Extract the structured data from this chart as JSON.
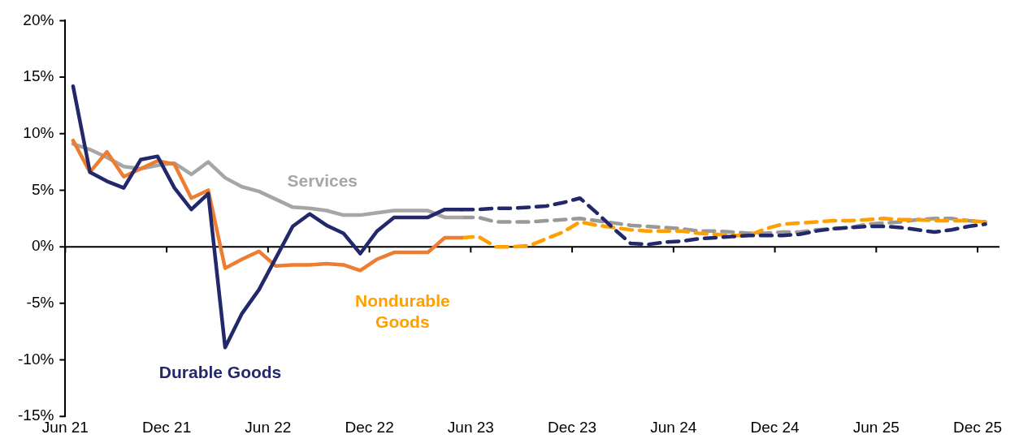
{
  "chart_data": {
    "type": "line",
    "x": [
      "2021-06-15",
      "2021-07-15",
      "2021-08-15",
      "2021-09-15",
      "2021-10-15",
      "2021-11-15",
      "2021-12-15",
      "2022-01-15",
      "2022-02-15",
      "2022-03-15",
      "2022-04-15",
      "2022-05-15",
      "2022-06-15",
      "2022-07-15",
      "2022-08-15",
      "2022-09-15",
      "2022-10-15",
      "2022-11-15",
      "2022-12-15",
      "2023-01-15",
      "2023-02-15",
      "2023-03-15",
      "2023-04-15",
      "2023-05-15",
      "2023-06-15",
      "2023-07-15",
      "2023-08-15",
      "2023-09-15",
      "2023-10-15",
      "2023-11-15",
      "2023-12-15",
      "2024-01-15",
      "2024-02-15",
      "2024-03-15",
      "2024-04-15",
      "2024-05-15",
      "2024-06-15",
      "2024-07-15",
      "2024-08-15",
      "2024-09-15",
      "2024-10-15",
      "2024-11-15",
      "2024-12-15",
      "2025-01-15",
      "2025-02-15",
      "2025-03-15",
      "2025-04-15",
      "2025-05-15",
      "2025-06-15",
      "2025-07-15",
      "2025-08-15",
      "2025-09-15",
      "2025-10-15",
      "2025-11-15",
      "2025-12-15"
    ],
    "series": [
      {
        "name": "Durable Goods",
        "color": "#22286a",
        "line_style": "solid",
        "values": [
          14.2,
          6.6,
          5.8,
          5.2,
          7.7,
          8.0,
          5.2,
          3.3,
          4.7,
          -8.9,
          -5.9,
          -3.8,
          -1.0,
          1.8,
          2.9,
          1.9,
          1.2,
          -0.6,
          1.4,
          2.6,
          2.6,
          2.6,
          3.3,
          3.3,
          null,
          null,
          null,
          null,
          null,
          null,
          null,
          null,
          null,
          null,
          null,
          null,
          null,
          null,
          null,
          null,
          null,
          null,
          null,
          null,
          null,
          null,
          null,
          null,
          null,
          null,
          null,
          null,
          null,
          null,
          null
        ]
      },
      {
        "name": "Nondurable Goods",
        "color": "#ed7d31",
        "line_style": "solid",
        "values": [
          9.4,
          6.6,
          8.4,
          6.2,
          6.9,
          7.6,
          7.3,
          4.3,
          5.0,
          -1.9,
          -1.1,
          -0.4,
          -1.7,
          -1.6,
          -1.6,
          -1.5,
          -1.6,
          -2.1,
          -1.1,
          -0.5,
          -0.5,
          -0.5,
          0.8,
          0.8,
          null,
          null,
          null,
          null,
          null,
          null,
          null,
          null,
          null,
          null,
          null,
          null,
          null,
          null,
          null,
          null,
          null,
          null,
          null,
          null,
          null,
          null,
          null,
          null,
          null,
          null,
          null,
          null,
          null,
          null,
          null
        ]
      },
      {
        "name": "Services",
        "color": "#a6a6a6",
        "line_style": "solid",
        "values": [
          9.1,
          8.6,
          7.9,
          7.1,
          6.9,
          7.2,
          7.4,
          6.4,
          7.5,
          6.1,
          5.3,
          4.9,
          4.2,
          3.5,
          3.4,
          3.2,
          2.8,
          2.8,
          3.0,
          3.2,
          3.2,
          3.2,
          2.6,
          2.6,
          null,
          null,
          null,
          null,
          null,
          null,
          null,
          null,
          null,
          null,
          null,
          null,
          null,
          null,
          null,
          null,
          null,
          null,
          null,
          null,
          null,
          null,
          null,
          null,
          null,
          null,
          null,
          null,
          null,
          null,
          null
        ]
      },
      {
        "color": "#22286a",
        "line_style": "dashed",
        "values": [
          null,
          null,
          null,
          null,
          null,
          null,
          null,
          null,
          null,
          null,
          null,
          null,
          null,
          null,
          null,
          null,
          null,
          null,
          null,
          null,
          null,
          null,
          null,
          3.3,
          3.3,
          3.4,
          3.4,
          3.5,
          3.6,
          3.9,
          4.3,
          3.0,
          1.6,
          0.3,
          0.2,
          0.4,
          0.5,
          0.7,
          0.8,
          0.9,
          1.0,
          1.0,
          1.0,
          1.1,
          1.4,
          1.6,
          1.7,
          1.8,
          1.8,
          1.7,
          1.5,
          1.3,
          1.5,
          1.8,
          2.0
        ]
      },
      {
        "color": "#ffa000",
        "line_style": "dashed",
        "values": [
          null,
          null,
          null,
          null,
          null,
          null,
          null,
          null,
          null,
          null,
          null,
          null,
          null,
          null,
          null,
          null,
          null,
          null,
          null,
          null,
          null,
          null,
          null,
          0.8,
          0.9,
          0.0,
          0.0,
          0.1,
          0.7,
          1.3,
          2.2,
          1.9,
          1.7,
          1.5,
          1.4,
          1.4,
          1.4,
          1.2,
          1.1,
          1.0,
          1.0,
          1.6,
          2.0,
          2.1,
          2.2,
          2.3,
          2.3,
          2.4,
          2.5,
          2.4,
          2.4,
          2.3,
          2.3,
          2.3,
          2.2
        ]
      },
      {
        "color": "#999999",
        "line_style": "dashed",
        "values": [
          null,
          null,
          null,
          null,
          null,
          null,
          null,
          null,
          null,
          null,
          null,
          null,
          null,
          null,
          null,
          null,
          null,
          null,
          null,
          null,
          null,
          null,
          null,
          2.6,
          2.6,
          2.2,
          2.2,
          2.2,
          2.3,
          2.4,
          2.5,
          2.3,
          2.1,
          1.9,
          1.8,
          1.7,
          1.6,
          1.4,
          1.4,
          1.3,
          1.2,
          1.2,
          1.3,
          1.3,
          1.5,
          1.6,
          1.7,
          2.0,
          2.1,
          2.2,
          2.4,
          2.5,
          2.5,
          2.3,
          2.2
        ]
      }
    ],
    "xlim": [
      "2021-06-01",
      "2026-01-10"
    ],
    "xticks": [
      {
        "value": "2021-06-01",
        "label": "Jun 21"
      },
      {
        "value": "2021-12-01",
        "label": "Dec 21"
      },
      {
        "value": "2022-06-01",
        "label": "Jun 22"
      },
      {
        "value": "2022-12-01",
        "label": "Dec 22"
      },
      {
        "value": "2023-06-01",
        "label": "Jun 23"
      },
      {
        "value": "2023-12-01",
        "label": "Dec 23"
      },
      {
        "value": "2024-06-01",
        "label": "Jun 24"
      },
      {
        "value": "2024-12-01",
        "label": "Dec 24"
      },
      {
        "value": "2025-06-01",
        "label": "Jun 25"
      },
      {
        "value": "2025-12-01",
        "label": "Dec 25"
      }
    ],
    "ylim": [
      -15,
      20
    ],
    "yticks": [
      {
        "value": -15,
        "label": "-15%"
      },
      {
        "value": -10,
        "label": "-10%"
      },
      {
        "value": -5,
        "label": "-5%"
      },
      {
        "value": 0,
        "label": "0%"
      },
      {
        "value": 5,
        "label": "5%"
      },
      {
        "value": 10,
        "label": "10%"
      },
      {
        "value": 15,
        "label": "15%"
      },
      {
        "value": 20,
        "label": "20%"
      }
    ],
    "ref_lines": [
      {
        "axis": "y",
        "value": 0,
        "color": "#000000"
      }
    ],
    "grid": false,
    "legend": false,
    "marker": "none"
  }
}
